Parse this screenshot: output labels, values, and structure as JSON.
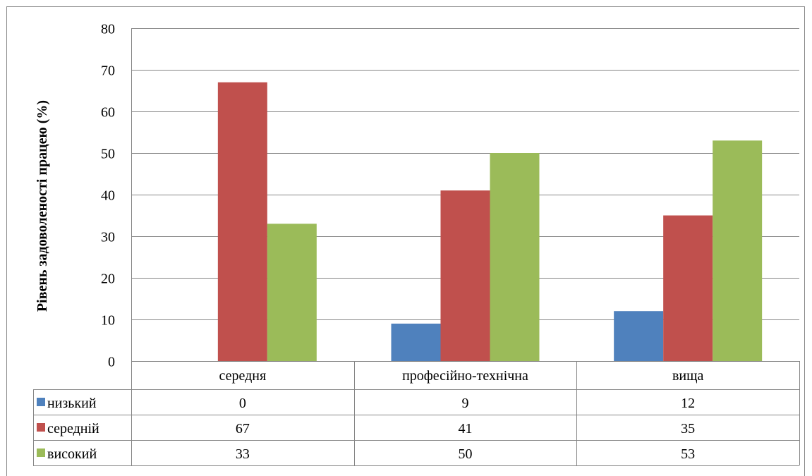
{
  "chart_data": {
    "type": "bar",
    "categories": [
      "середня",
      "професійно-технічна",
      "вища"
    ],
    "series": [
      {
        "name": "низький",
        "values": [
          0,
          9,
          12
        ],
        "color": "#4F81BD"
      },
      {
        "name": "середній",
        "values": [
          67,
          41,
          35
        ],
        "color": "#C0504D"
      },
      {
        "name": "високий",
        "values": [
          33,
          50,
          53
        ],
        "color": "#9BBB59"
      }
    ],
    "ylabel": "Рівень задоволеності працею (%)",
    "xlabel": "",
    "ylim": [
      0,
      80
    ],
    "yticks": [
      0,
      10,
      20,
      30,
      40,
      50,
      60,
      70,
      80
    ],
    "grid": true,
    "legend": "data-table-left"
  }
}
